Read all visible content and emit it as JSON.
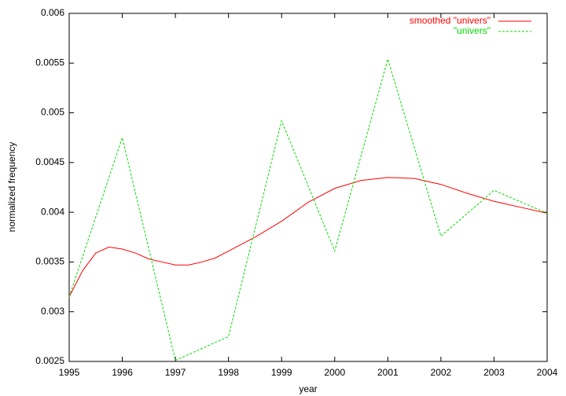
{
  "chart_data": {
    "type": "line",
    "xlabel": "year",
    "ylabel": "normalized frequency",
    "xlim": [
      1995,
      2004
    ],
    "xticks": [
      1995,
      1996,
      1997,
      1998,
      1999,
      2000,
      2001,
      2002,
      2003,
      2004
    ],
    "ylim": [
      0.0025,
      0.006
    ],
    "yticks": [
      0.0025,
      0.003,
      0.0035,
      0.004,
      0.0045,
      0.005,
      0.0055,
      0.006
    ],
    "legend": "top-right",
    "series": [
      {
        "name": "smoothed \"univers\"",
        "color": "#ff0000",
        "dash": false,
        "x": [
          1995,
          1995.25,
          1995.5,
          1995.75,
          1996,
          1996.25,
          1996.5,
          1996.75,
          1997,
          1997.25,
          1997.5,
          1997.75,
          1998,
          1998.5,
          1999,
          1999.5,
          2000,
          2000.5,
          2001,
          2001.5,
          2002,
          2002.5,
          2003,
          2003.5,
          2004
        ],
        "values": [
          0.00315,
          0.00341,
          0.00359,
          0.00365,
          0.00363,
          0.00359,
          0.00353,
          0.0035,
          0.00347,
          0.00347,
          0.0035,
          0.00354,
          0.00361,
          0.00375,
          0.00391,
          0.0041,
          0.00424,
          0.00432,
          0.00435,
          0.00434,
          0.00428,
          0.00419,
          0.00411,
          0.00405,
          0.00399
        ]
      },
      {
        "name": "\"univers\"",
        "color": "#00dd00",
        "dash": true,
        "x": [
          1995,
          1996,
          1997,
          1998,
          1999,
          2000,
          2001,
          2002,
          2003,
          2004
        ],
        "values": [
          0.00315,
          0.00475,
          0.00251,
          0.00275,
          0.00492,
          0.00361,
          0.00554,
          0.00376,
          0.00422,
          0.00399
        ]
      }
    ]
  }
}
